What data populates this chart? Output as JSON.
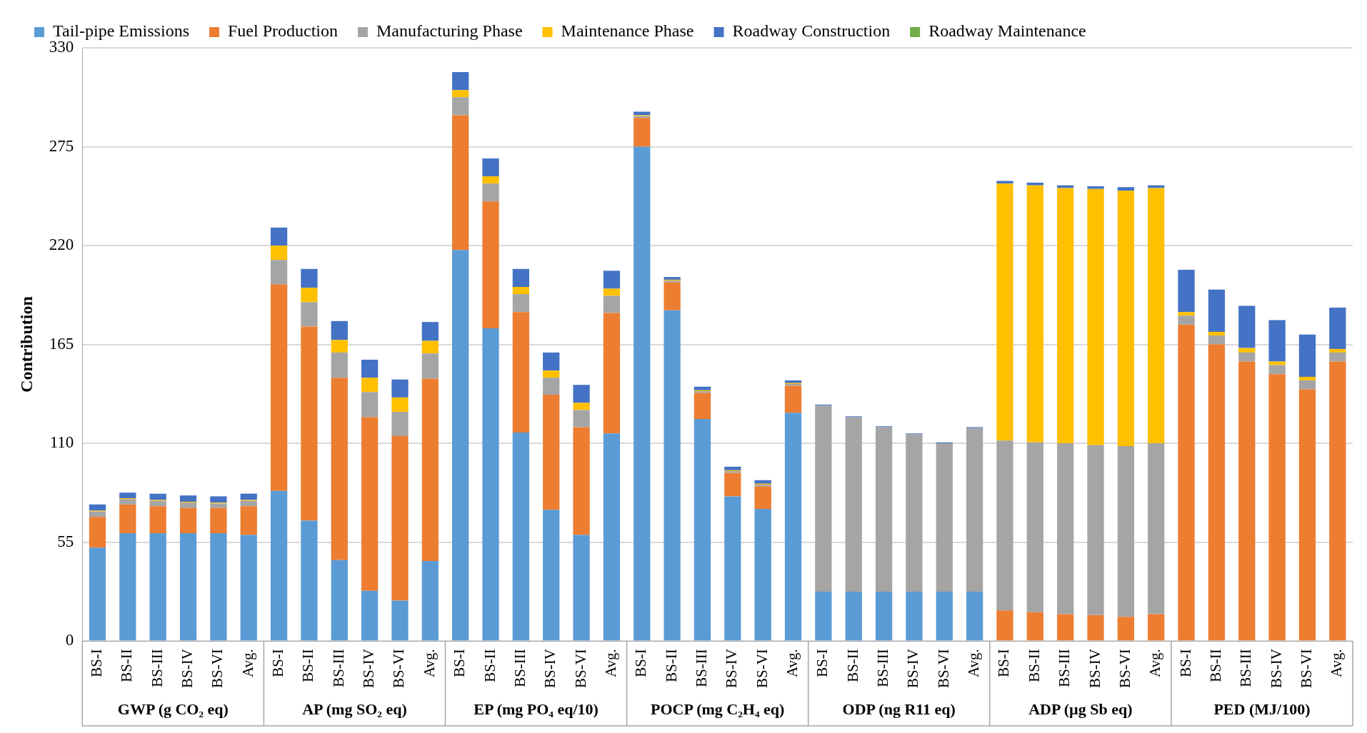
{
  "chart_data": {
    "type": "bar",
    "stacked": true,
    "ylabel": "Contribution",
    "legend": "top",
    "grid": "y",
    "categories": [
      "BS-I",
      "BS-II",
      "BS-III",
      "BS-IV",
      "BS-VI",
      "Avg.",
      "BS-I",
      "BS-II",
      "BS-III",
      "BS-IV",
      "BS-VI",
      "Avg.",
      "BS-I",
      "BS-II",
      "BS-III",
      "BS-IV",
      "BS-VI",
      "Avg.",
      "BS-I",
      "BS-II",
      "BS-III",
      "BS-IV",
      "BS-VI",
      "Avg.",
      "BS-I",
      "BS-II",
      "BS-III",
      "BS-IV",
      "BS-VI",
      "Avg.",
      "BS-I",
      "BS-II",
      "BS-III",
      "BS-IV",
      "BS-VI",
      "Avg.",
      "BS-I",
      "BS-II",
      "BS-III",
      "BS-IV",
      "BS-VI",
      "Avg."
    ],
    "annotations": [
      "GWP (g CO₂ eq)",
      "AP (mg SO₂ eq)",
      "EP (mg PO₄ eq/10)",
      "POCP (mg C₂H₄ eq)",
      "ODP (ng R11 eq)",
      "ADP (µg Sb eq)",
      "PED (MJ/100)"
    ],
    "ylim": [
      0,
      330
    ],
    "yticks": [
      0,
      55,
      110,
      165,
      220,
      275,
      330
    ],
    "series": [
      {
        "name": "Tail-pipe Emissions",
        "color": "#5b9bd5",
        "values": [
          52,
          60,
          60,
          60,
          60,
          59,
          83.5,
          67,
          45,
          28,
          22.5,
          44.5,
          217.5,
          174,
          116,
          73,
          59,
          115.5,
          275,
          184,
          123.5,
          80.5,
          73.5,
          127,
          27.5,
          27.5,
          27.5,
          27.5,
          27.5,
          27.5,
          0,
          0,
          0,
          0,
          0,
          0,
          0,
          0,
          0,
          0,
          0,
          0
        ]
      },
      {
        "name": "Fuel Production",
        "color": "#ed7d31",
        "values": [
          17,
          16,
          15,
          14,
          14,
          16,
          115,
          108,
          101.5,
          96.5,
          91.5,
          101.5,
          75,
          70.5,
          67,
          64,
          60,
          67,
          16,
          15.5,
          14.5,
          13,
          12.5,
          15,
          0,
          0,
          0,
          0,
          0,
          0,
          17,
          16,
          15,
          14.5,
          13.5,
          15,
          176,
          165,
          155.5,
          148.5,
          140,
          155.5
        ]
      },
      {
        "name": "Manufacturing Phase",
        "color": "#a5a5a5",
        "values": [
          3,
          3,
          3,
          3,
          2.5,
          3,
          13.5,
          13.5,
          14,
          14,
          13.5,
          14,
          10,
          10,
          10,
          9.5,
          9.5,
          9.5,
          1,
          1,
          1,
          1,
          1,
          1,
          103.5,
          97,
          91.5,
          87.5,
          82.5,
          91,
          94.5,
          94.5,
          95,
          94.5,
          95,
          95,
          5,
          5,
          5,
          5,
          5,
          5
        ]
      },
      {
        "name": "Maintenance Phase",
        "color": "#ffc000",
        "values": [
          0.5,
          0.5,
          0.5,
          0.5,
          0.5,
          0.5,
          8,
          8,
          7,
          8,
          8,
          7,
          4,
          4,
          4,
          4,
          4,
          4,
          0.5,
          0.5,
          0.5,
          0.5,
          0.5,
          0.5,
          0,
          0,
          0,
          0,
          0,
          0,
          143,
          143,
          142,
          142.5,
          142,
          142,
          2,
          2,
          2.5,
          2,
          2,
          2
        ]
      },
      {
        "name": "Roadway Construction",
        "color": "#4472c4",
        "values": [
          3.5,
          3,
          3.5,
          3.5,
          3.5,
          3.5,
          10,
          10.5,
          10.5,
          10,
          10,
          10.5,
          10,
          10,
          10,
          10,
          10,
          10,
          2,
          1.5,
          2,
          2,
          2,
          1.5,
          0.5,
          0.5,
          0.5,
          0.5,
          0.5,
          0.5,
          1.5,
          1.5,
          1.5,
          1.5,
          2,
          1.5,
          23.5,
          23.5,
          23.5,
          23,
          23.5,
          23
        ]
      },
      {
        "name": "Roadway Maintenance",
        "color": "#70ad47",
        "values": [
          0,
          0,
          0,
          0,
          0,
          0,
          0,
          0,
          0,
          0,
          0,
          0,
          0,
          0,
          0,
          0,
          0,
          0,
          0,
          0,
          0,
          0,
          0,
          0,
          0,
          0,
          0,
          0,
          0,
          0,
          0,
          0,
          0,
          0,
          0,
          0,
          0,
          0,
          0,
          0,
          0,
          0
        ]
      }
    ]
  }
}
